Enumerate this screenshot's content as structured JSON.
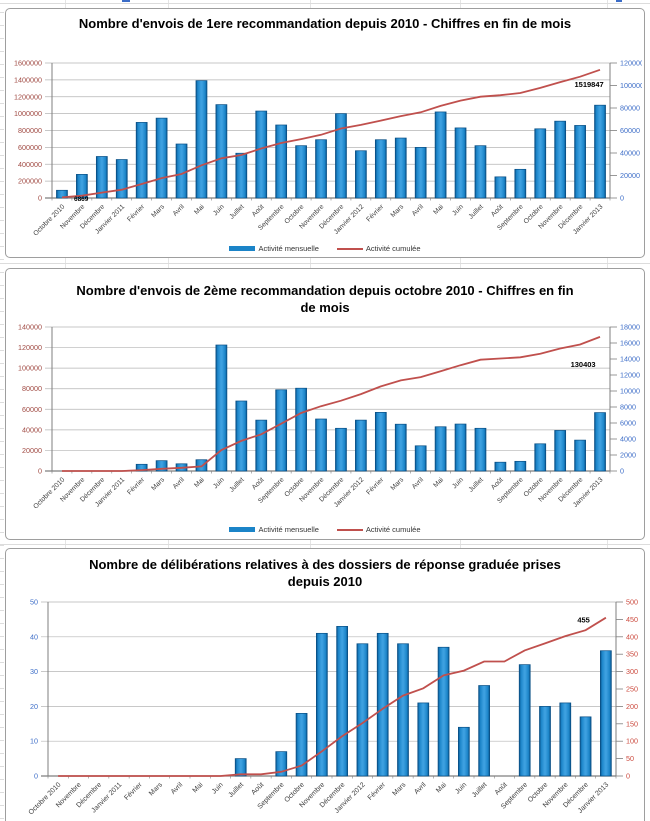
{
  "legend": {
    "monthly_label": "Activité mensuelle",
    "cumulative_label": "Activité cumulée"
  },
  "colors": {
    "bar_fill": "#1b84c8",
    "bar_edge": "#084e84",
    "bar_highlight": "#3da0e0",
    "line": "#c0504d",
    "grid": "#b5b5b5",
    "axis": "#7f7f7f",
    "x_label_text": "#3f3f3f",
    "annotation_text": "#000000",
    "dark_red_axis_text": "#a14b44",
    "blue_axis_text": "#3f6fc8",
    "red_axis_text_chart3": "#cc4b3f"
  },
  "chart_data": [
    {
      "type": "bar",
      "subtype": "bar-with-cumulative-line",
      "title": "Nombre d'envois de 1ere recommandation depuis 2010 - Chiffres en fin de mois",
      "grid": true,
      "legend_visible": true,
      "legend_position": "bottom",
      "categories": [
        "Octobre 2010",
        "Novembre",
        "Décembre",
        "Janvier 2011",
        "Février",
        "Mars",
        "Avril",
        "Mai",
        "Juin",
        "Juillet",
        "Août",
        "Septembre",
        "Octobre",
        "Novembre",
        "Décembre",
        "Janvier 2012",
        "Février",
        "Mars",
        "Avril",
        "Mai",
        "Juin",
        "Juillet",
        "Août",
        "Septembre",
        "Octobre",
        "Novembre",
        "Décembre",
        "Janvier 2013"
      ],
      "series": [
        {
          "name": "Activité mensuelle",
          "type": "bar",
          "axis": "right",
          "values": [
            6869,
            21000,
            36900,
            34200,
            67200,
            71000,
            48000,
            104300,
            83000,
            39800,
            77300,
            64900,
            46500,
            51800,
            75000,
            42000,
            51800,
            53300,
            45000,
            76500,
            62300,
            46500,
            18800,
            25500,
            61500,
            68300,
            64500,
            82500
          ]
        },
        {
          "name": "Activité cumulée",
          "type": "line",
          "axis": "left",
          "derived": "cumulative sum of monthly values",
          "end_value": 1519847
        }
      ],
      "left_axis": {
        "range": [
          0,
          1600000
        ],
        "step": 200000,
        "tick_labels": [
          "1600000",
          "1400000",
          "1200000",
          "1000000",
          "800000",
          "600000",
          "400000",
          "200000",
          "0"
        ],
        "text_color": "#a14b44"
      },
      "right_axis": {
        "range": [
          0,
          120000
        ],
        "step": 20000,
        "tick_labels": [
          "120000",
          "100000",
          "80000",
          "60000",
          "40000",
          "20000",
          "0"
        ],
        "text_color": "#3f6fc8"
      },
      "annotations": [
        {
          "text": "6869",
          "at": "first-point"
        },
        {
          "text": "1519847",
          "at": "line-end"
        }
      ]
    },
    {
      "type": "bar",
      "subtype": "bar-with-cumulative-line",
      "title": "Nombre d'envois de 2ème recommandation depuis octobre 2010 - Chiffres en fin de mois",
      "grid": true,
      "legend_visible": true,
      "legend_position": "bottom",
      "categories": [
        "Octobre 2010",
        "Novembre",
        "Décembre",
        "Janvier 2011",
        "Février",
        "Mars",
        "Avril",
        "Mai",
        "Juin",
        "Juillet",
        "Août",
        "Septembre",
        "Octobre",
        "Novembre",
        "Décembre",
        "Janvier 2012",
        "Février",
        "Mars",
        "Avril",
        "Mai",
        "Juin",
        "Juillet",
        "Août",
        "Septembre",
        "Octobre",
        "Novembre",
        "Décembre",
        "Janvier 2013"
      ],
      "series": [
        {
          "name": "Activité mensuelle",
          "type": "bar",
          "axis": "right",
          "values": [
            0,
            0,
            0,
            0,
            840,
            1290,
            900,
            1410,
            15750,
            8750,
            6360,
            10150,
            10350,
            6500,
            5340,
            6360,
            7330,
            5850,
            3150,
            5530,
            5870,
            5340,
            1100,
            1210,
            3400,
            5070,
            3860,
            7300
          ]
        },
        {
          "name": "Activité cumulée",
          "type": "line",
          "axis": "left",
          "derived": "cumulative sum of monthly values",
          "end_value": 130403
        }
      ],
      "left_axis": {
        "range": [
          0,
          140000
        ],
        "step": 20000,
        "tick_labels": [
          "140000",
          "120000",
          "100000",
          "80000",
          "60000",
          "40000",
          "20000",
          "0"
        ],
        "text_color": "#a14b44"
      },
      "right_axis": {
        "range": [
          0,
          18000
        ],
        "step": 2000,
        "tick_labels": [
          "18000",
          "16000",
          "14000",
          "12000",
          "10000",
          "8000",
          "6000",
          "4000",
          "2000",
          "0"
        ],
        "text_color": "#3f6fc8"
      },
      "annotations": [
        {
          "text": "130403",
          "at": "line-end"
        }
      ]
    },
    {
      "type": "bar",
      "subtype": "bar-with-cumulative-line",
      "title": "Nombre de délibérations relatives à des dossiers de réponse graduée prises depuis 2010",
      "grid": true,
      "legend_visible": false,
      "categories": [
        "Octobre 2010",
        "Novembre",
        "Décembre",
        "Janvier 2011",
        "Février",
        "Mars",
        "Avril",
        "Mai",
        "Juin",
        "Juillet",
        "Août",
        "Septembre",
        "Octobre",
        "Novembre",
        "Décembre",
        "Janvier 2012",
        "Février",
        "Mars",
        "Avril",
        "Mai",
        "Juin",
        "Juillet",
        "Août",
        "Septembre",
        "Octobre",
        "Novembre",
        "Décembre",
        "Janvier 2013"
      ],
      "series": [
        {
          "name": "Activité mensuelle",
          "type": "bar",
          "axis": "left",
          "values": [
            0,
            0,
            0,
            0,
            0,
            0,
            0,
            0,
            0,
            5,
            0,
            7,
            18,
            41,
            43,
            38,
            41,
            38,
            21,
            37,
            14,
            26,
            0,
            32,
            20,
            21,
            17,
            36
          ]
        },
        {
          "name": "Activité cumulée",
          "type": "line",
          "axis": "right",
          "derived": "cumulative sum of monthly values",
          "end_value": 455
        }
      ],
      "left_axis": {
        "range": [
          0,
          50
        ],
        "step": 10,
        "tick_labels": [
          "50",
          "40",
          "30",
          "20",
          "10",
          "0"
        ],
        "text_color": "#3f6fc8"
      },
      "right_axis": {
        "range": [
          0,
          500
        ],
        "step": 50,
        "tick_labels": [
          "500",
          "450",
          "400",
          "350",
          "300",
          "250",
          "200",
          "150",
          "100",
          "50",
          "0"
        ],
        "text_color": "#cc4b3f"
      },
      "annotations": [
        {
          "text": "455",
          "at": "line-end"
        }
      ]
    }
  ]
}
